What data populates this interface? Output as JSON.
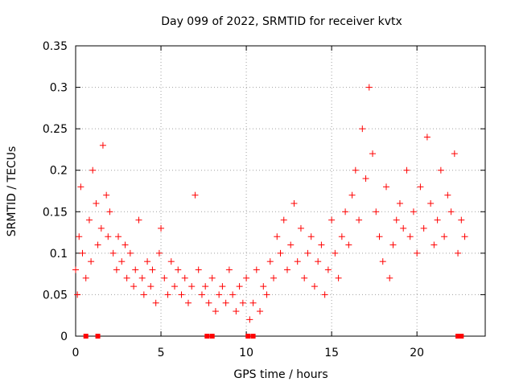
{
  "chart_data": {
    "type": "scatter",
    "title": "Day 099 of 2022, SRMTID for receiver kvtx",
    "xlabel": "GPS time / hours",
    "ylabel": "SRMTID / TECUs",
    "xlim": [
      0,
      24
    ],
    "ylim": [
      0,
      0.35
    ],
    "x_ticks": [
      0,
      5,
      10,
      15,
      20
    ],
    "x_tick_labels": [
      "0",
      "5",
      "10",
      "15",
      "20"
    ],
    "y_ticks": [
      0,
      0.05,
      0.1,
      0.15,
      0.2,
      0.25,
      0.3,
      0.35
    ],
    "y_tick_labels": [
      "0",
      "0.05",
      "0.1",
      "0.15",
      "0.2",
      "0.25",
      "0.3",
      "0.35"
    ],
    "grid": true,
    "marker": "plus",
    "color": "#ff0000",
    "series": [
      {
        "name": "SRMTID",
        "x": [
          0.0,
          0.1,
          0.2,
          0.3,
          0.4,
          0.6,
          0.8,
          0.9,
          1.0,
          1.2,
          1.3,
          1.5,
          1.6,
          1.8,
          1.9,
          2.0,
          2.2,
          2.4,
          2.5,
          2.7,
          2.9,
          3.0,
          3.2,
          3.4,
          3.5,
          3.7,
          3.9,
          4.0,
          4.2,
          4.4,
          4.5,
          4.7,
          4.9,
          5.0,
          5.2,
          5.4,
          5.6,
          5.8,
          6.0,
          6.2,
          6.4,
          6.6,
          6.8,
          7.0,
          7.2,
          7.4,
          7.6,
          7.8,
          8.0,
          8.2,
          8.4,
          8.6,
          8.8,
          9.0,
          9.2,
          9.4,
          9.6,
          9.8,
          10.0,
          10.2,
          10.4,
          10.6,
          10.8,
          11.0,
          11.2,
          11.4,
          11.6,
          11.8,
          12.0,
          12.2,
          12.4,
          12.6,
          12.8,
          13.0,
          13.2,
          13.4,
          13.6,
          13.8,
          14.0,
          14.2,
          14.4,
          14.6,
          14.8,
          15.0,
          15.2,
          15.4,
          15.6,
          15.8,
          16.0,
          16.2,
          16.4,
          16.6,
          16.8,
          17.0,
          17.2,
          17.4,
          17.6,
          17.8,
          18.0,
          18.2,
          18.4,
          18.6,
          18.8,
          19.0,
          19.2,
          19.4,
          19.6,
          19.8,
          20.0,
          20.2,
          20.4,
          20.6,
          20.8,
          21.0,
          21.2,
          21.4,
          21.6,
          21.8,
          22.0,
          22.2,
          22.4,
          22.6,
          22.8
        ],
        "values": [
          0.08,
          0.05,
          0.12,
          0.18,
          0.1,
          0.07,
          0.14,
          0.09,
          0.2,
          0.16,
          0.11,
          0.13,
          0.23,
          0.17,
          0.12,
          0.15,
          0.1,
          0.08,
          0.12,
          0.09,
          0.11,
          0.07,
          0.1,
          0.06,
          0.08,
          0.14,
          0.07,
          0.05,
          0.09,
          0.06,
          0.08,
          0.04,
          0.1,
          0.13,
          0.07,
          0.05,
          0.09,
          0.06,
          0.08,
          0.05,
          0.07,
          0.04,
          0.06,
          0.17,
          0.08,
          0.05,
          0.06,
          0.04,
          0.07,
          0.03,
          0.05,
          0.06,
          0.04,
          0.08,
          0.05,
          0.03,
          0.06,
          0.04,
          0.07,
          0.02,
          0.04,
          0.08,
          0.03,
          0.06,
          0.05,
          0.09,
          0.07,
          0.12,
          0.1,
          0.14,
          0.08,
          0.11,
          0.16,
          0.09,
          0.13,
          0.07,
          0.1,
          0.12,
          0.06,
          0.09,
          0.11,
          0.05,
          0.08,
          0.14,
          0.1,
          0.07,
          0.12,
          0.15,
          0.11,
          0.17,
          0.2,
          0.14,
          0.25,
          0.19,
          0.3,
          0.22,
          0.15,
          0.12,
          0.09,
          0.18,
          0.07,
          0.11,
          0.14,
          0.16,
          0.13,
          0.2,
          0.12,
          0.15,
          0.1,
          0.18,
          0.13,
          0.24,
          0.16,
          0.11,
          0.14,
          0.2,
          0.12,
          0.17,
          0.15,
          0.22,
          0.1,
          0.14,
          0.12
        ]
      }
    ],
    "zero_markers_x": [
      0.6,
      1.3,
      7.7,
      8.0,
      10.1,
      10.4,
      22.4,
      22.6
    ]
  }
}
